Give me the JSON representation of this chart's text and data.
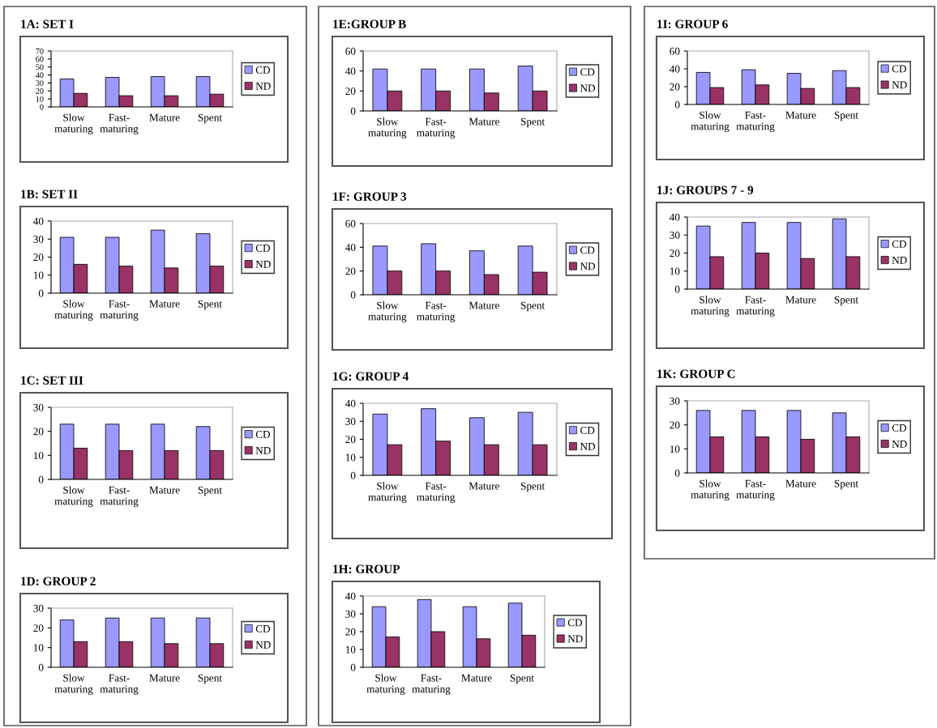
{
  "chart_data": [
    {
      "type": "bar",
      "title": "1A: SET I",
      "categories": [
        "Slow maturing",
        "Fast-maturing",
        "Mature",
        "Spent"
      ],
      "ylim": [
        0,
        70
      ],
      "yticks": [
        0,
        10,
        20,
        30,
        40,
        50,
        60,
        70
      ],
      "legend": "right",
      "series": [
        {
          "name": "CD",
          "color": "#9999ff",
          "values": [
            35,
            37,
            38,
            38
          ]
        },
        {
          "name": "ND",
          "color": "#993366",
          "values": [
            17,
            14,
            14,
            16
          ]
        }
      ]
    },
    {
      "type": "bar",
      "title": "1B: SET II",
      "categories": [
        "Slow maturing",
        "Fast-maturing",
        "Mature",
        "Spent"
      ],
      "ylim": [
        0,
        40
      ],
      "yticks": [
        0,
        10,
        20,
        30,
        40
      ],
      "legend": "right",
      "series": [
        {
          "name": "CD",
          "color": "#9999ff",
          "values": [
            31,
            31,
            35,
            33
          ]
        },
        {
          "name": "ND",
          "color": "#993366",
          "values": [
            16,
            15,
            14,
            15
          ]
        }
      ]
    },
    {
      "type": "bar",
      "title": "1C: SET III",
      "categories": [
        "Slow maturing",
        "Fast-maturing",
        "Mature",
        "Spent"
      ],
      "ylim": [
        0,
        30
      ],
      "yticks": [
        0,
        10,
        20,
        30
      ],
      "legend": "right",
      "series": [
        {
          "name": "CD",
          "color": "#9999ff",
          "values": [
            23,
            23,
            23,
            22
          ]
        },
        {
          "name": "ND",
          "color": "#993366",
          "values": [
            13,
            12,
            12,
            12
          ]
        }
      ]
    },
    {
      "type": "bar",
      "title": "1D: GROUP 2",
      "categories": [
        "Slow maturing",
        "Fast-maturing",
        "Mature",
        "Spent"
      ],
      "ylim": [
        0,
        30
      ],
      "yticks": [
        0,
        10,
        20,
        30
      ],
      "legend": "right",
      "series": [
        {
          "name": "CD",
          "color": "#9999ff",
          "values": [
            24,
            25,
            25,
            25
          ]
        },
        {
          "name": "ND",
          "color": "#993366",
          "values": [
            13,
            13,
            12,
            12
          ]
        }
      ]
    },
    {
      "type": "bar",
      "title": "1E:GROUP B",
      "categories": [
        "Slow maturing",
        "Fast-maturing",
        "Mature",
        "Spent"
      ],
      "ylim": [
        0,
        60
      ],
      "yticks": [
        0,
        20,
        40,
        60
      ],
      "legend": "right",
      "series": [
        {
          "name": "CD",
          "color": "#9999ff",
          "values": [
            42,
            42,
            42,
            45
          ]
        },
        {
          "name": "ND",
          "color": "#993366",
          "values": [
            20,
            20,
            18,
            20
          ]
        }
      ]
    },
    {
      "type": "bar",
      "title": "1F: GROUP 3",
      "categories": [
        "Slow maturing",
        "Fast-maturing",
        "Mature",
        "Spent"
      ],
      "ylim": [
        0,
        60
      ],
      "yticks": [
        0,
        20,
        40,
        60
      ],
      "legend": "right",
      "series": [
        {
          "name": "CD",
          "color": "#9999ff",
          "values": [
            41,
            43,
            37,
            41
          ]
        },
        {
          "name": "ND",
          "color": "#993366",
          "values": [
            20,
            20,
            17,
            19
          ]
        }
      ]
    },
    {
      "type": "bar",
      "title": "1G: GROUP 4",
      "categories": [
        "Slow maturing",
        "Fast-maturing",
        "Mature",
        "Spent"
      ],
      "ylim": [
        0,
        40
      ],
      "yticks": [
        0,
        10,
        20,
        30,
        40
      ],
      "legend": "right",
      "series": [
        {
          "name": "CD",
          "color": "#9999ff",
          "values": [
            34,
            37,
            32,
            35
          ]
        },
        {
          "name": "ND",
          "color": "#993366",
          "values": [
            17,
            19,
            17,
            17
          ]
        }
      ]
    },
    {
      "type": "bar",
      "title": "1H: GROUP",
      "categories": [
        "Slow maturing",
        "Fast-maturing",
        "Mature",
        "Spent"
      ],
      "ylim": [
        0,
        40
      ],
      "yticks": [
        0,
        10,
        20,
        30,
        40
      ],
      "legend": "right",
      "series": [
        {
          "name": "CD",
          "color": "#9999ff",
          "values": [
            34,
            38,
            34,
            36
          ]
        },
        {
          "name": "ND",
          "color": "#993366",
          "values": [
            17,
            20,
            16,
            18
          ]
        }
      ]
    },
    {
      "type": "bar",
      "title": "1I: GROUP 6",
      "categories": [
        "Slow maturing",
        "Fast-maturing",
        "Mature",
        "Spent"
      ],
      "ylim": [
        0,
        60
      ],
      "yticks": [
        0,
        20,
        40,
        60
      ],
      "legend": "right",
      "series": [
        {
          "name": "CD",
          "color": "#9999ff",
          "values": [
            36,
            39,
            35,
            38
          ]
        },
        {
          "name": "ND",
          "color": "#993366",
          "values": [
            19,
            22,
            18,
            19
          ]
        }
      ]
    },
    {
      "type": "bar",
      "title": "1J: GROUPS 7 - 9",
      "categories": [
        "Slow maturing",
        "Fast-maturing",
        "Mature",
        "Spent"
      ],
      "ylim": [
        0,
        40
      ],
      "yticks": [
        0,
        10,
        20,
        30,
        40
      ],
      "legend": "right",
      "series": [
        {
          "name": "CD",
          "color": "#9999ff",
          "values": [
            35,
            37,
            37,
            39
          ]
        },
        {
          "name": "ND",
          "color": "#993366",
          "values": [
            18,
            20,
            17,
            18
          ]
        }
      ]
    },
    {
      "type": "bar",
      "title": "1K: GROUP C",
      "categories": [
        "Slow maturing",
        "Fast-maturing",
        "Mature",
        "Spent"
      ],
      "ylim": [
        0,
        30
      ],
      "yticks": [
        0,
        10,
        20,
        30
      ],
      "legend": "right",
      "series": [
        {
          "name": "CD",
          "color": "#9999ff",
          "values": [
            26,
            26,
            26,
            25
          ]
        },
        {
          "name": "ND",
          "color": "#993366",
          "values": [
            15,
            15,
            14,
            15
          ]
        }
      ]
    }
  ]
}
